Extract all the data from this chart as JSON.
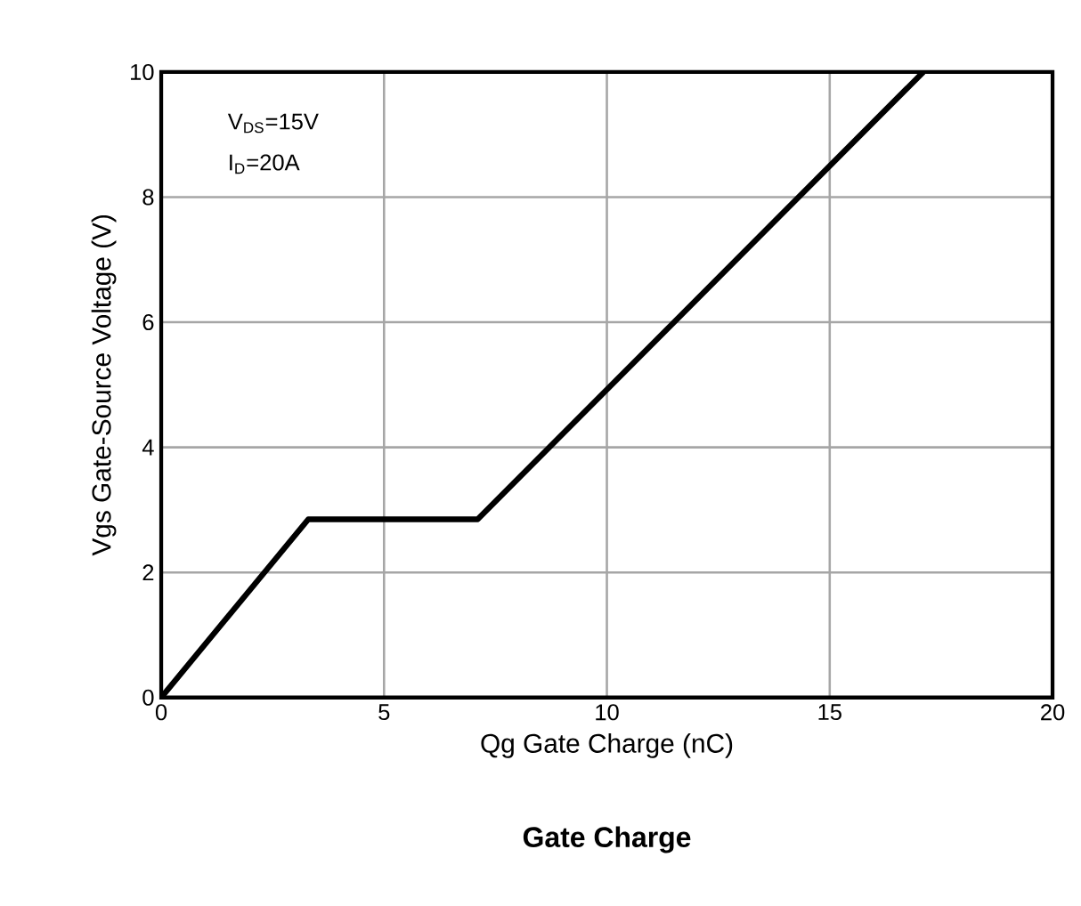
{
  "chart_data": {
    "type": "line",
    "title": "Gate Charge",
    "xlabel": "Qg Gate Charge (nC)",
    "ylabel": "Vgs Gate-Source Voltage (V)",
    "x": [
      0,
      3.3,
      7.1,
      17.1
    ],
    "series": [
      {
        "color": "#000000",
        "values": [
          0,
          2.85,
          2.85,
          10
        ]
      }
    ],
    "xlim": [
      0,
      20
    ],
    "ylim": [
      0,
      10
    ],
    "xticks": [
      0,
      5,
      10,
      15,
      20
    ],
    "yticks": [
      0,
      2,
      4,
      6,
      8,
      10
    ],
    "grid": true,
    "marker": "none",
    "line_style": "solid",
    "annotations": [
      "V$_{DS}$=15V",
      "I$_{D}$=20A"
    ]
  }
}
